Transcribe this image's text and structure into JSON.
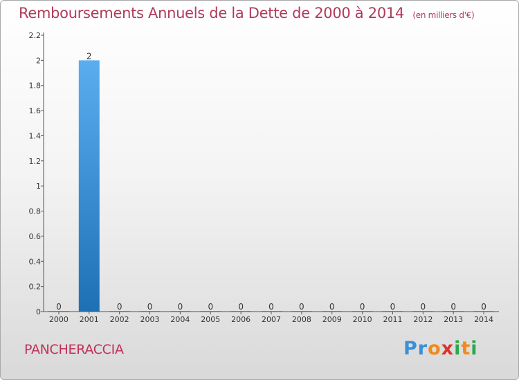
{
  "header": {
    "title": "Remboursements Annuels de la Dette de 2000 à 2014",
    "subtitle": "(en milliers d'€)"
  },
  "footer": {
    "commune": "PANCHERACCIA",
    "logo_text": "Proxiti"
  },
  "colors": {
    "title": "#b03a5b",
    "bar_top": "#5aaef0",
    "bar_bottom": "#1e70b5",
    "axis": "#555555"
  },
  "chart_data": {
    "type": "bar",
    "title": "Remboursements Annuels de la Dette de 2000 à 2014",
    "xlabel": "",
    "ylabel": "",
    "categories": [
      "2000",
      "2001",
      "2002",
      "2003",
      "2004",
      "2005",
      "2006",
      "2007",
      "2008",
      "2009",
      "2010",
      "2011",
      "2012",
      "2013",
      "2014"
    ],
    "values": [
      0,
      2,
      0,
      0,
      0,
      0,
      0,
      0,
      0,
      0,
      0,
      0,
      0,
      0,
      0
    ],
    "data_labels": [
      "0",
      "2",
      "0",
      "0",
      "0",
      "0",
      "0",
      "0",
      "0",
      "0",
      "0",
      "0",
      "0",
      "0",
      "0"
    ],
    "ylim": [
      0,
      2.2
    ],
    "yticks": [
      0,
      0.2,
      0.4,
      0.6,
      0.8,
      1,
      1.2,
      1.4,
      1.6,
      1.8,
      2,
      2.2
    ],
    "ytick_labels": [
      "0",
      "0.2",
      "0.4",
      "0.6",
      "0.8",
      "1",
      "1.2",
      "1.4",
      "1.6",
      "1.8",
      "2",
      "2.2"
    ],
    "grid": false,
    "legend": "none"
  }
}
